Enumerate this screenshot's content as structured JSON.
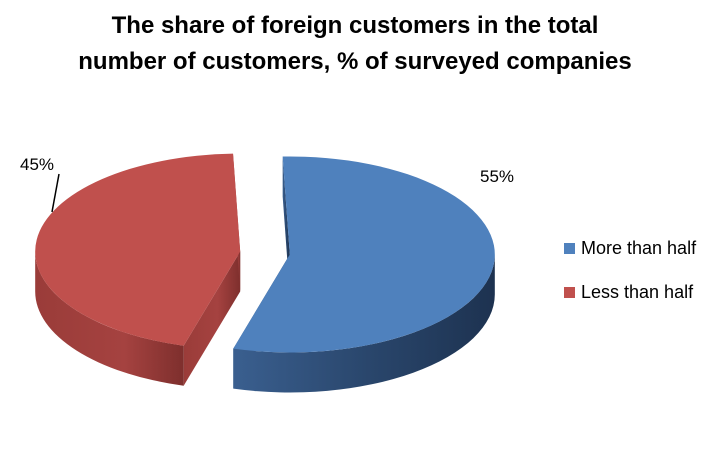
{
  "chart_data": {
    "type": "pie",
    "title": "The share of foreign customers in the total number of customers, % of surveyed companies",
    "title_lines": [
      "The share of foreign customers in the total",
      "number of customers, % of surveyed companies"
    ],
    "categories": [
      "More than half",
      "Less than half"
    ],
    "values": [
      55,
      45
    ],
    "labels": [
      "55%",
      "45%"
    ],
    "colors": [
      "#4F81BD",
      "#C0504D"
    ],
    "legend_position": "right",
    "style": "3d-exploded"
  }
}
